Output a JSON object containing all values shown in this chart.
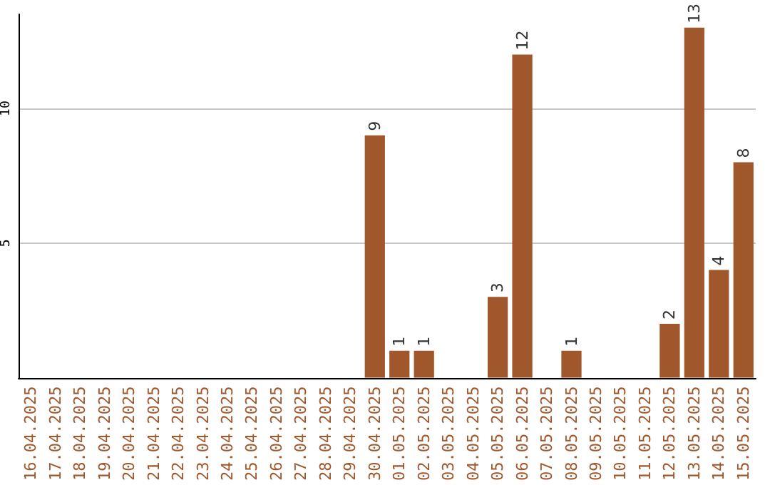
{
  "chart_data": {
    "type": "bar",
    "categories": [
      "16.04.2025",
      "17.04.2025",
      "18.04.2025",
      "19.04.2025",
      "20.04.2025",
      "21.04.2025",
      "22.04.2025",
      "23.04.2025",
      "24.04.2025",
      "25.04.2025",
      "26.04.2025",
      "27.04.2025",
      "28.04.2025",
      "29.04.2025",
      "30.04.2025",
      "01.05.2025",
      "02.05.2025",
      "03.05.2025",
      "04.05.2025",
      "05.05.2025",
      "06.05.2025",
      "07.05.2025",
      "08.05.2025",
      "09.05.2025",
      "10.05.2025",
      "11.05.2025",
      "12.05.2025",
      "13.05.2025",
      "14.05.2025",
      "15.05.2025"
    ],
    "values": [
      0,
      0,
      0,
      0,
      0,
      0,
      0,
      0,
      0,
      0,
      0,
      0,
      0,
      0,
      9,
      1,
      1,
      0,
      0,
      3,
      12,
      0,
      1,
      0,
      0,
      0,
      2,
      13,
      4,
      8
    ],
    "value_labels": [
      null,
      null,
      null,
      null,
      null,
      null,
      null,
      null,
      null,
      null,
      null,
      null,
      null,
      null,
      "9",
      "1",
      "1",
      null,
      null,
      "3",
      "12",
      null,
      "1",
      null,
      null,
      null,
      "2",
      "13",
      "4",
      "8"
    ],
    "color": "#a0572b",
    "ylim": [
      0,
      13.5
    ],
    "yticks": [
      5,
      10
    ],
    "grid": "y"
  }
}
